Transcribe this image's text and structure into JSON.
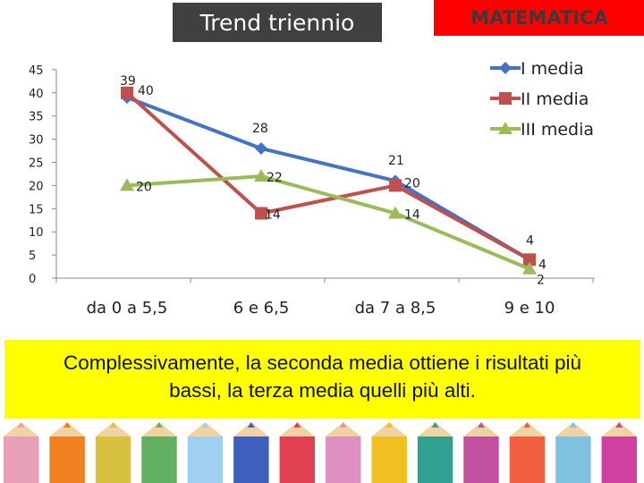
{
  "header": {
    "title": "Trend triennio",
    "badge": "MATEMATICA"
  },
  "chart_data": {
    "type": "line",
    "categories": [
      "da 0 a 5,5",
      "6 e 6,5",
      "da 7 a 8,5",
      "9 e 10"
    ],
    "series": [
      {
        "name": "I media",
        "values": [
          39,
          28,
          21,
          4
        ],
        "color": "#4472c4",
        "marker": "diamond"
      },
      {
        "name": "II media",
        "values": [
          40,
          14,
          20,
          4
        ],
        "color": "#c0504d",
        "marker": "square"
      },
      {
        "name": "III media",
        "values": [
          20,
          22,
          14,
          2
        ],
        "color": "#9bbb59",
        "marker": "triangle"
      }
    ],
    "yticks": [
      0,
      5,
      10,
      15,
      20,
      25,
      30,
      35,
      40,
      45
    ],
    "ylim": [
      0,
      45
    ],
    "grid": false,
    "legend": "top-right",
    "data_labels": true
  },
  "conclusion": {
    "text": "Complessivamente, la seconda media ottiene i risultati più bassi, la terza media quelli più alti."
  },
  "footer": {
    "pencil_colors": [
      "#e8a0b8",
      "#f08020",
      "#d8c040",
      "#60b060",
      "#a0d0f0",
      "#4060c0",
      "#e04050",
      "#e090c0",
      "#f0c020",
      "#30a090",
      "#c050a0",
      "#f06040",
      "#80c0e0",
      "#d040a0"
    ]
  }
}
